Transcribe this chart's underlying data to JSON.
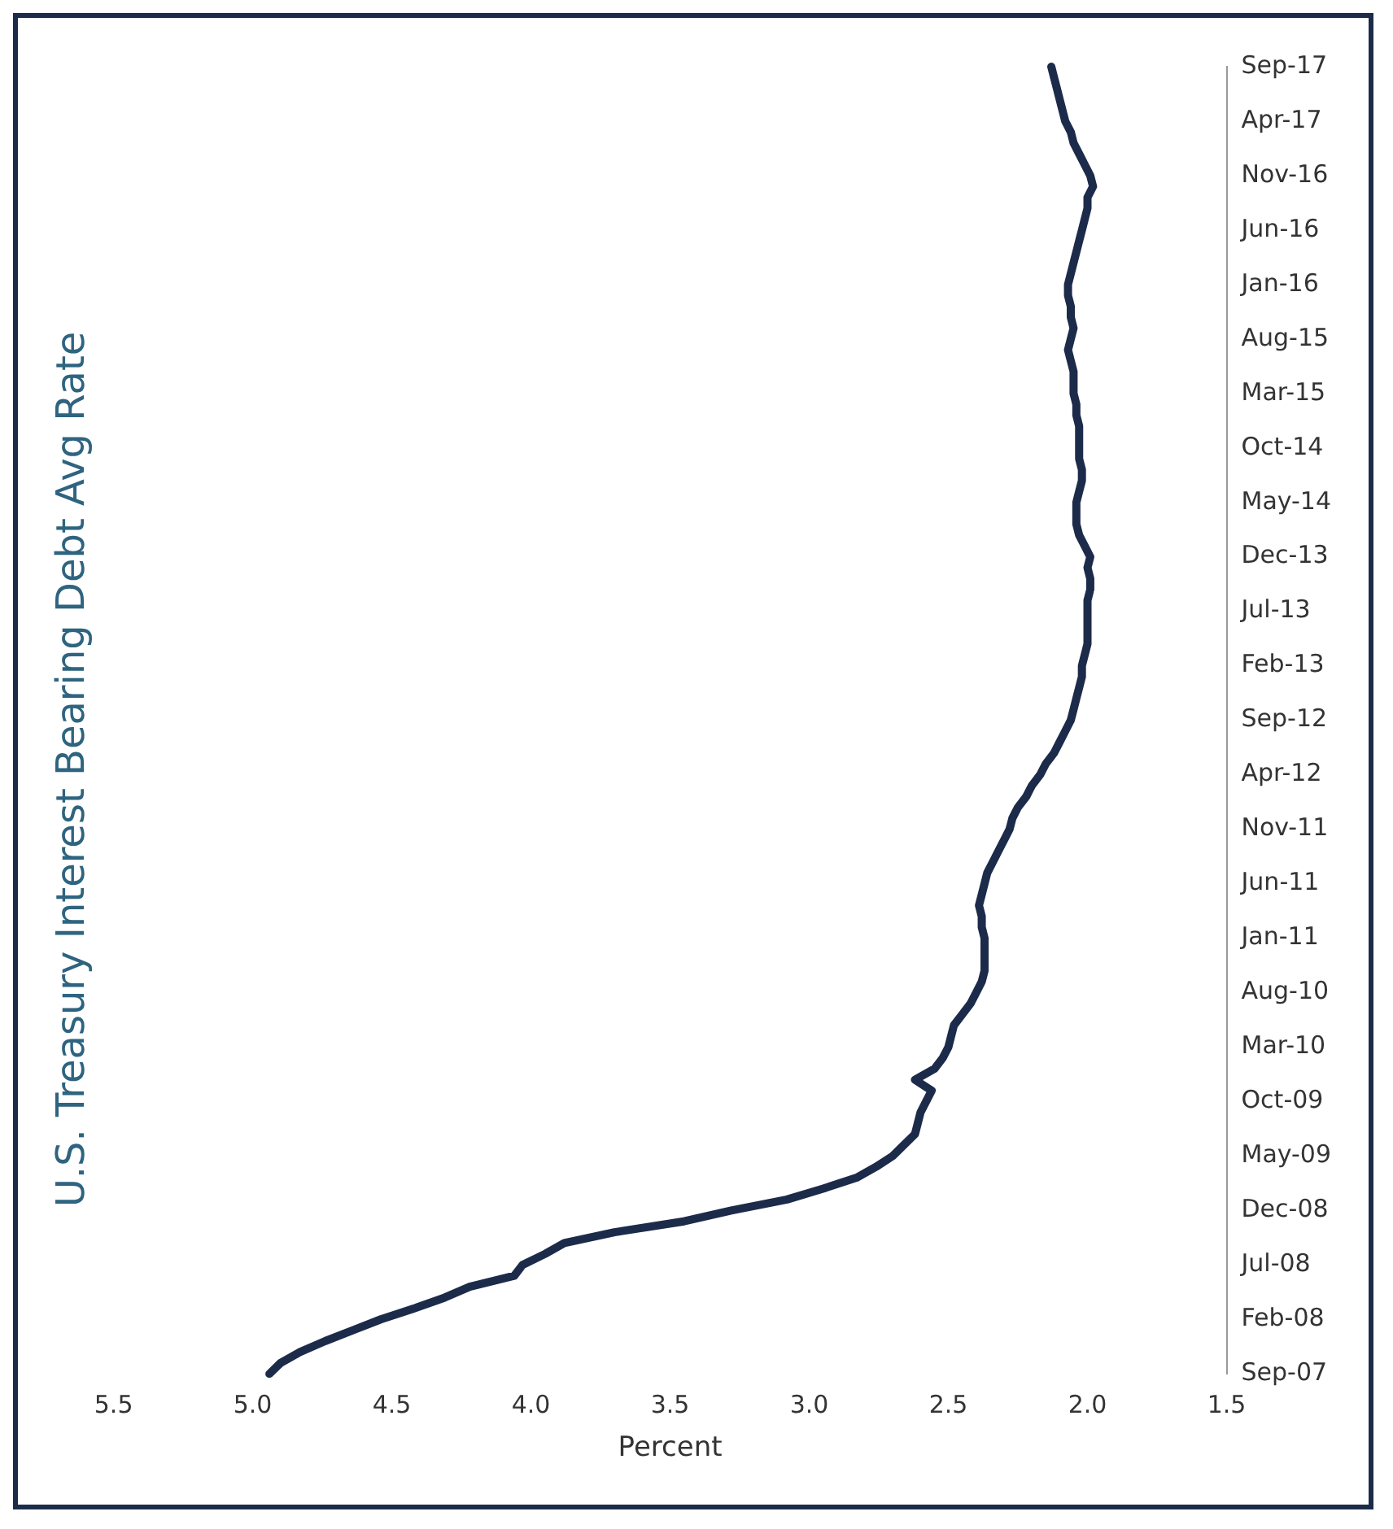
{
  "chart_data": {
    "type": "line",
    "orientation": "horizontal",
    "title": "U.S. Treasury Interest Bearing Debt Avg Rate",
    "xlabel": "Percent",
    "categories": [
      "Sep-17",
      null,
      null,
      null,
      null,
      "Apr-17",
      null,
      null,
      null,
      null,
      "Nov-16",
      null,
      null,
      null,
      null,
      "Jun-16",
      null,
      null,
      null,
      null,
      "Jan-16",
      null,
      null,
      null,
      null,
      "Aug-15",
      null,
      null,
      null,
      null,
      "Mar-15",
      null,
      null,
      null,
      null,
      "Oct-14",
      null,
      null,
      null,
      null,
      "May-14",
      null,
      null,
      null,
      null,
      "Dec-13",
      null,
      null,
      null,
      null,
      "Jul-13",
      null,
      null,
      null,
      null,
      "Feb-13",
      null,
      null,
      null,
      null,
      "Sep-12",
      null,
      null,
      null,
      null,
      "Apr-12",
      null,
      null,
      null,
      null,
      "Nov-11",
      null,
      null,
      null,
      null,
      "Jun-11",
      null,
      null,
      null,
      null,
      "Jan-11",
      null,
      null,
      null,
      null,
      "Aug-10",
      null,
      null,
      null,
      null,
      "Mar-10",
      null,
      null,
      null,
      null,
      "Oct-09",
      null,
      null,
      null,
      null,
      "May-09",
      null,
      null,
      null,
      null,
      "Dec-08",
      null,
      null,
      null,
      null,
      "Jul-08",
      null,
      null,
      null,
      null,
      "Feb-08",
      null,
      null,
      null,
      null,
      "Sep-07"
    ],
    "series": [
      {
        "color": "#1c2b4a",
        "values": [
          2.13,
          2.12,
          2.11,
          2.1,
          2.09,
          2.08,
          2.06,
          2.05,
          2.03,
          2.01,
          1.99,
          1.98,
          2.0,
          2.0,
          2.01,
          2.02,
          2.03,
          2.04,
          2.05,
          2.06,
          2.07,
          2.07,
          2.06,
          2.06,
          2.05,
          2.06,
          2.07,
          2.06,
          2.05,
          2.05,
          2.05,
          2.04,
          2.04,
          2.03,
          2.03,
          2.03,
          2.03,
          2.02,
          2.02,
          2.03,
          2.04,
          2.04,
          2.04,
          2.03,
          2.01,
          1.99,
          2.0,
          1.99,
          1.99,
          2.0,
          2.0,
          2.0,
          2.0,
          2.0,
          2.01,
          2.02,
          2.02,
          2.03,
          2.04,
          2.05,
          2.06,
          2.08,
          2.1,
          2.12,
          2.15,
          2.17,
          2.2,
          2.22,
          2.25,
          2.27,
          2.28,
          2.3,
          2.32,
          2.34,
          2.36,
          2.37,
          2.38,
          2.39,
          2.38,
          2.38,
          2.37,
          2.37,
          2.37,
          2.37,
          2.38,
          2.4,
          2.42,
          2.45,
          2.48,
          2.49,
          2.5,
          2.52,
          2.55,
          2.62,
          2.56,
          2.58,
          2.6,
          2.61,
          2.62,
          2.66,
          2.7,
          2.76,
          2.83,
          2.95,
          3.08,
          3.28,
          3.45,
          3.7,
          3.88,
          3.95,
          4.03,
          4.06,
          4.22,
          4.31,
          4.42,
          4.54,
          4.64,
          4.74,
          4.83,
          4.9,
          4.94
        ]
      }
    ],
    "xlim": [
      5.5,
      1.5
    ],
    "xticks": [
      {
        "value": 5.5,
        "label": "5.5"
      },
      {
        "value": 5,
        "label": "5.0"
      },
      {
        "value": 4.5,
        "label": "4.5"
      },
      {
        "value": 4,
        "label": "4.0"
      },
      {
        "value": 3.5,
        "label": "3.5"
      },
      {
        "value": 3,
        "label": "3.0"
      },
      {
        "value": 2.5,
        "label": "2.5"
      },
      {
        "value": 2,
        "label": "2.0"
      },
      {
        "value": 1.5,
        "label": "1.5"
      }
    ],
    "grid": false,
    "legend": false,
    "marker": "none",
    "line_style": "solid"
  }
}
